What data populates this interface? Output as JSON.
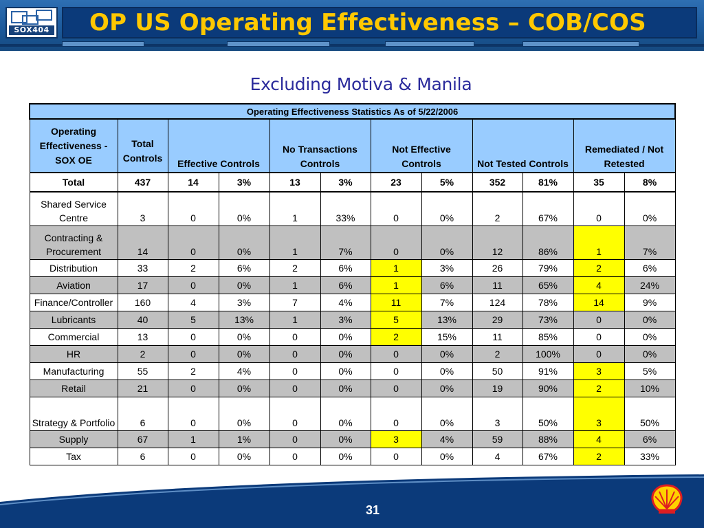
{
  "header": {
    "logo_text": "SOX404",
    "title": "OP US Operating Effectiveness – COB/COS",
    "subtitle": "Excluding Motiva & Manila"
  },
  "table": {
    "caption": "Operating Effectiveness Statistics As of 5/22/2006",
    "columns": [
      "Operating Effectiveness - SOX OE",
      "Total Controls",
      "Effective Controls",
      "No Transactions Controls",
      "Not Effective Controls",
      "Not Tested Controls",
      "Remediated / Not Retested"
    ],
    "total": [
      "Total",
      "437",
      "14",
      "3%",
      "13",
      "3%",
      "23",
      "5%",
      "352",
      "81%",
      "35",
      "8%"
    ],
    "rows": [
      {
        "label": "Shared Service Centre",
        "cells": [
          "3",
          "0",
          "0%",
          "1",
          "33%",
          "0",
          "0%",
          "2",
          "67%",
          "0",
          "0%"
        ]
      },
      {
        "label": "Contracting & Procurement",
        "cells": [
          "14",
          "0",
          "0%",
          "1",
          "7%",
          "0",
          "0%",
          "12",
          "86%",
          "1",
          "7%"
        ]
      },
      {
        "label": "Distribution",
        "cells": [
          "33",
          "2",
          "6%",
          "2",
          "6%",
          "1",
          "3%",
          "26",
          "79%",
          "2",
          "6%"
        ]
      },
      {
        "label": "Aviation",
        "cells": [
          "17",
          "0",
          "0%",
          "1",
          "6%",
          "1",
          "6%",
          "11",
          "65%",
          "4",
          "24%"
        ]
      },
      {
        "label": "Finance/Controller",
        "cells": [
          "160",
          "4",
          "3%",
          "7",
          "4%",
          "11",
          "7%",
          "124",
          "78%",
          "14",
          "9%"
        ]
      },
      {
        "label": "Lubricants",
        "cells": [
          "40",
          "5",
          "13%",
          "1",
          "3%",
          "5",
          "13%",
          "29",
          "73%",
          "0",
          "0%"
        ]
      },
      {
        "label": "Commercial",
        "cells": [
          "13",
          "0",
          "0%",
          "0",
          "0%",
          "2",
          "15%",
          "11",
          "85%",
          "0",
          "0%"
        ]
      },
      {
        "label": "HR",
        "cells": [
          "2",
          "0",
          "0%",
          "0",
          "0%",
          "0",
          "0%",
          "2",
          "100%",
          "0",
          "0%"
        ]
      },
      {
        "label": "Manufacturing",
        "cells": [
          "55",
          "2",
          "4%",
          "0",
          "0%",
          "0",
          "0%",
          "50",
          "91%",
          "3",
          "5%"
        ]
      },
      {
        "label": "Retail",
        "cells": [
          "21",
          "0",
          "0%",
          "0",
          "0%",
          "0",
          "0%",
          "19",
          "90%",
          "2",
          "10%"
        ]
      },
      {
        "label": "Strategy & Portfolio",
        "cells": [
          "6",
          "0",
          "0%",
          "0",
          "0%",
          "0",
          "0%",
          "3",
          "50%",
          "3",
          "50%"
        ]
      },
      {
        "label": "Supply",
        "cells": [
          "67",
          "1",
          "1%",
          "0",
          "0%",
          "3",
          "4%",
          "59",
          "88%",
          "4",
          "6%"
        ]
      },
      {
        "label": "Tax",
        "cells": [
          "6",
          "0",
          "0%",
          "0",
          "0%",
          "0",
          "0%",
          "4",
          "67%",
          "2",
          "33%"
        ]
      }
    ]
  },
  "footer": {
    "page_number": "31",
    "logo": "shell-logo"
  },
  "colors": {
    "title_text": "#ffc800",
    "subtitle_text": "#2b2b9c",
    "header_fill": "#99ccff",
    "row_shade": "#c0c0c0",
    "highlight": "#ffff00",
    "footer_navy": "#0b3a7a"
  }
}
